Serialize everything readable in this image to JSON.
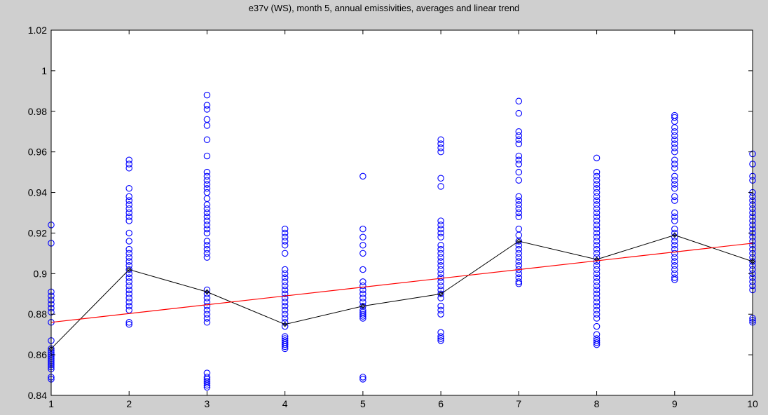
{
  "chart_data": {
    "type": "scatter",
    "title": "e37v (WS), month 5, annual emissivities, averages and linear trend",
    "xlabel": "",
    "ylabel": "",
    "xlim": [
      1,
      10
    ],
    "ylim": [
      0.84,
      1.02
    ],
    "x_ticks": [
      "1",
      "2",
      "3",
      "4",
      "5",
      "6",
      "7",
      "8",
      "9",
      "10"
    ],
    "y_ticks": [
      "0.84",
      "0.86",
      "0.88",
      "0.9",
      "0.92",
      "0.94",
      "0.96",
      "0.98",
      "1",
      "1.02"
    ],
    "grid": false,
    "legend": "none",
    "colors": {
      "points": "#0000ff",
      "average": "#000000",
      "trend": "#ff0000",
      "axes_bg": "#ffffff",
      "figure_bg": "#cfcfcf"
    },
    "series": [
      {
        "kind": "points",
        "values": [
          [
            0.924,
            0.915,
            0.891,
            0.889,
            0.887,
            0.885,
            0.883,
            0.881,
            0.876,
            0.867,
            0.863,
            0.862,
            0.861,
            0.86,
            0.859,
            0.858,
            0.857,
            0.856,
            0.855,
            0.854,
            0.853,
            0.849,
            0.848
          ],
          [
            0.956,
            0.954,
            0.952,
            0.942,
            0.938,
            0.936,
            0.934,
            0.932,
            0.93,
            0.928,
            0.926,
            0.92,
            0.916,
            0.912,
            0.91,
            0.908,
            0.906,
            0.904,
            0.902,
            0.9,
            0.898,
            0.896,
            0.894,
            0.892,
            0.89,
            0.888,
            0.886,
            0.884,
            0.882,
            0.876,
            0.875
          ],
          [
            0.988,
            0.983,
            0.981,
            0.976,
            0.973,
            0.966,
            0.958,
            0.95,
            0.948,
            0.946,
            0.944,
            0.942,
            0.94,
            0.937,
            0.934,
            0.932,
            0.93,
            0.928,
            0.926,
            0.924,
            0.922,
            0.92,
            0.916,
            0.914,
            0.912,
            0.91,
            0.908,
            0.892,
            0.89,
            0.888,
            0.886,
            0.884,
            0.882,
            0.88,
            0.878,
            0.876,
            0.851,
            0.849,
            0.848,
            0.847,
            0.846,
            0.845,
            0.844
          ],
          [
            0.922,
            0.92,
            0.918,
            0.916,
            0.914,
            0.91,
            0.902,
            0.9,
            0.898,
            0.896,
            0.894,
            0.892,
            0.89,
            0.888,
            0.886,
            0.884,
            0.882,
            0.88,
            0.878,
            0.876,
            0.874,
            0.869,
            0.868,
            0.867,
            0.866,
            0.865,
            0.864,
            0.863
          ],
          [
            0.948,
            0.922,
            0.918,
            0.914,
            0.91,
            0.902,
            0.896,
            0.894,
            0.892,
            0.89,
            0.888,
            0.886,
            0.884,
            0.882,
            0.881,
            0.88,
            0.879,
            0.878,
            0.849,
            0.848
          ],
          [
            0.966,
            0.964,
            0.962,
            0.96,
            0.947,
            0.943,
            0.926,
            0.924,
            0.922,
            0.92,
            0.918,
            0.914,
            0.912,
            0.91,
            0.908,
            0.906,
            0.904,
            0.902,
            0.9,
            0.898,
            0.896,
            0.894,
            0.892,
            0.89,
            0.888,
            0.884,
            0.882,
            0.88,
            0.871,
            0.869,
            0.868,
            0.867
          ],
          [
            0.985,
            0.979,
            0.97,
            0.968,
            0.966,
            0.964,
            0.958,
            0.956,
            0.954,
            0.95,
            0.946,
            0.938,
            0.936,
            0.934,
            0.932,
            0.93,
            0.928,
            0.922,
            0.919,
            0.916,
            0.914,
            0.912,
            0.91,
            0.908,
            0.906,
            0.904,
            0.902,
            0.9,
            0.898,
            0.896,
            0.895
          ],
          [
            0.957,
            0.95,
            0.948,
            0.946,
            0.944,
            0.942,
            0.94,
            0.938,
            0.936,
            0.934,
            0.932,
            0.93,
            0.928,
            0.926,
            0.924,
            0.922,
            0.92,
            0.918,
            0.916,
            0.914,
            0.912,
            0.91,
            0.908,
            0.906,
            0.904,
            0.902,
            0.9,
            0.898,
            0.896,
            0.894,
            0.892,
            0.89,
            0.888,
            0.886,
            0.884,
            0.882,
            0.88,
            0.878,
            0.874,
            0.87,
            0.868,
            0.867,
            0.866,
            0.865
          ],
          [
            0.978,
            0.977,
            0.975,
            0.972,
            0.97,
            0.968,
            0.966,
            0.964,
            0.962,
            0.96,
            0.956,
            0.954,
            0.952,
            0.948,
            0.946,
            0.944,
            0.942,
            0.938,
            0.936,
            0.93,
            0.928,
            0.926,
            0.922,
            0.92,
            0.918,
            0.916,
            0.914,
            0.912,
            0.91,
            0.908,
            0.906,
            0.904,
            0.902,
            0.9,
            0.898,
            0.897
          ],
          [
            0.959,
            0.954,
            0.948,
            0.946,
            0.94,
            0.938,
            0.936,
            0.934,
            0.932,
            0.93,
            0.928,
            0.926,
            0.924,
            0.922,
            0.92,
            0.918,
            0.916,
            0.914,
            0.912,
            0.91,
            0.908,
            0.906,
            0.904,
            0.902,
            0.9,
            0.898,
            0.896,
            0.894,
            0.892,
            0.878,
            0.877,
            0.876
          ]
        ]
      },
      {
        "kind": "averages",
        "x": [
          1,
          2,
          3,
          4,
          5,
          6,
          7,
          8,
          9,
          10
        ],
        "values": [
          0.863,
          0.902,
          0.891,
          0.875,
          0.884,
          0.89,
          0.916,
          0.907,
          0.919,
          0.906
        ]
      },
      {
        "kind": "linear-trend",
        "x": [
          1,
          10
        ],
        "values": [
          0.876,
          0.915
        ]
      }
    ]
  }
}
